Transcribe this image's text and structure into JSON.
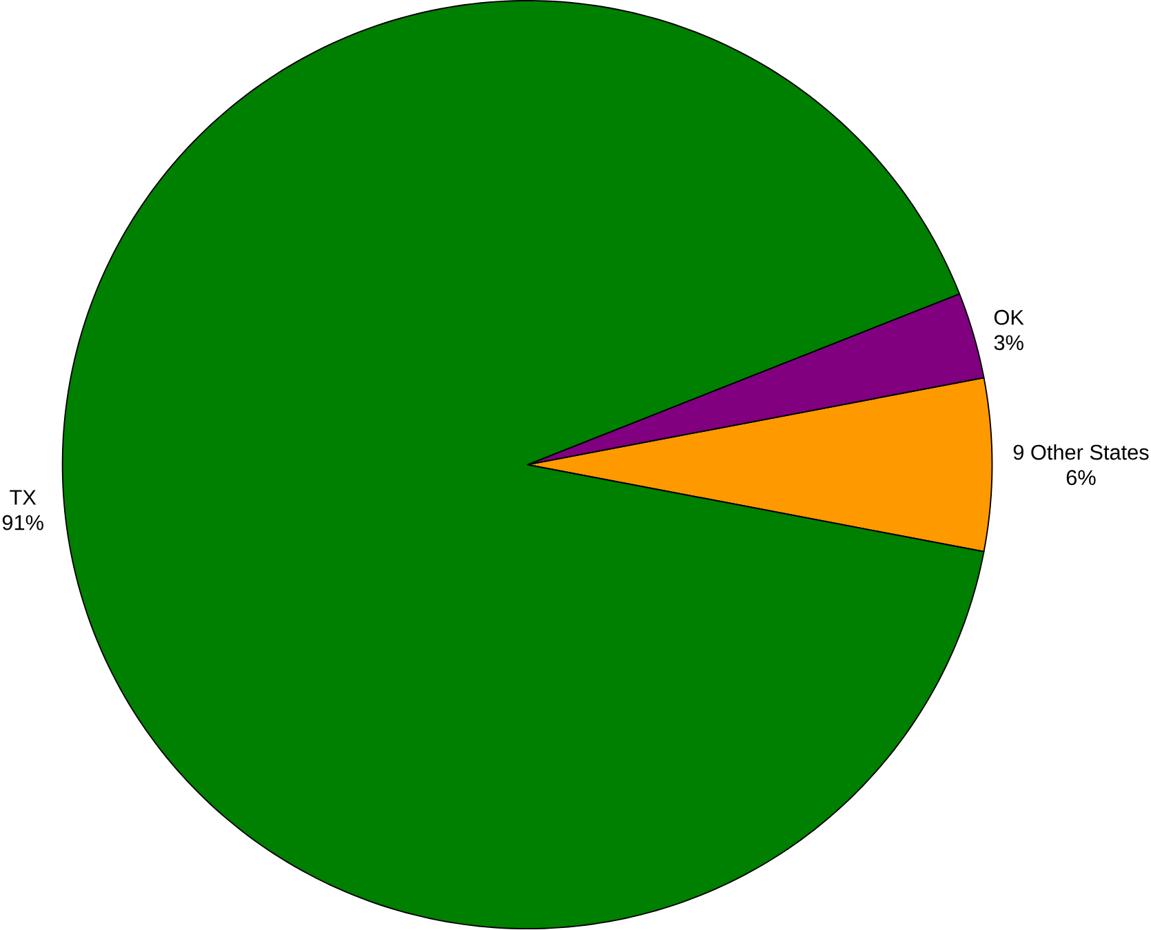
{
  "chart_data": {
    "type": "pie",
    "categories": [
      "9 Other States",
      "OK",
      "TX"
    ],
    "values": [
      6,
      3,
      91
    ],
    "colors": [
      "#ff9900",
      "#800080",
      "#008000"
    ],
    "value_labels": [
      "6%",
      "3%",
      "91%"
    ]
  }
}
